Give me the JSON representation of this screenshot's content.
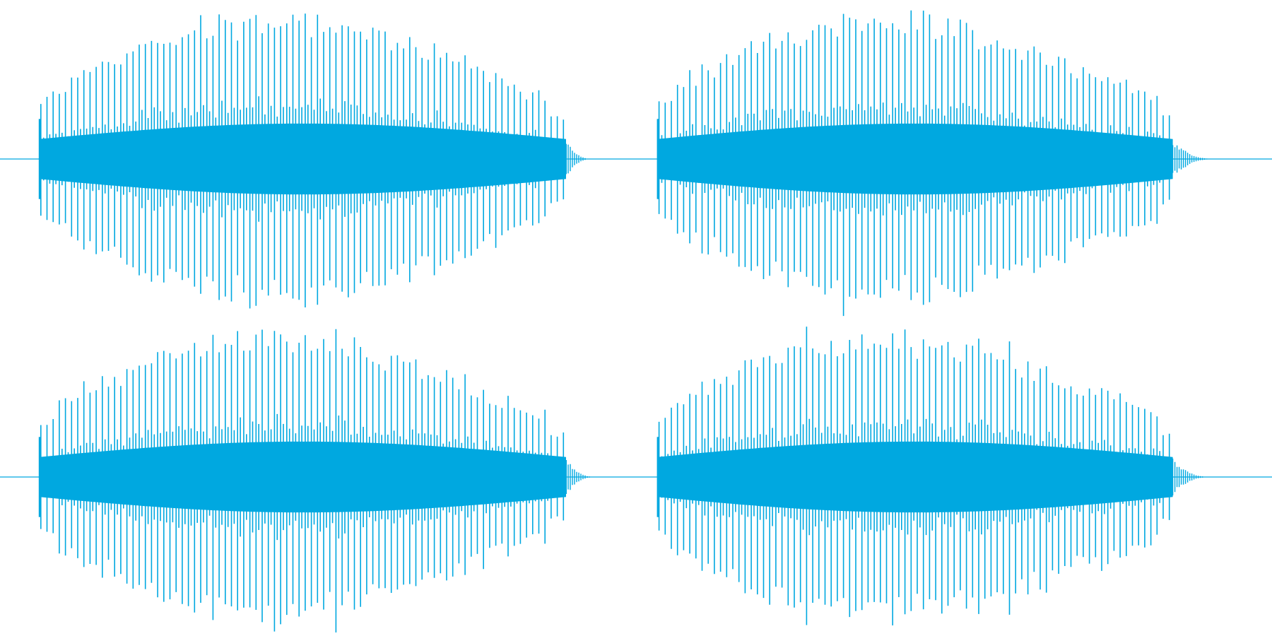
{
  "waveform": {
    "color": "#00a8e0",
    "background": "#ffffff",
    "channels": [
      {
        "name": "",
        "bursts": [
          {
            "start": 0.031,
            "end": 0.445,
            "tail_end": 0.465,
            "peak_amplitude": 1.0,
            "envelope_start": 0.38,
            "envelope_end": 0.55
          },
          {
            "start": 0.517,
            "end": 0.922,
            "tail_end": 0.955,
            "peak_amplitude": 1.0,
            "envelope_start": 0.4,
            "envelope_end": 0.52
          }
        ]
      },
      {
        "name": "",
        "bursts": [
          {
            "start": 0.031,
            "end": 0.445,
            "tail_end": 0.468,
            "peak_amplitude": 1.0,
            "envelope_start": 0.38,
            "envelope_end": 0.55
          },
          {
            "start": 0.517,
            "end": 0.922,
            "tail_end": 0.952,
            "peak_amplitude": 1.0,
            "envelope_start": 0.4,
            "envelope_end": 0.52
          }
        ]
      }
    ]
  }
}
